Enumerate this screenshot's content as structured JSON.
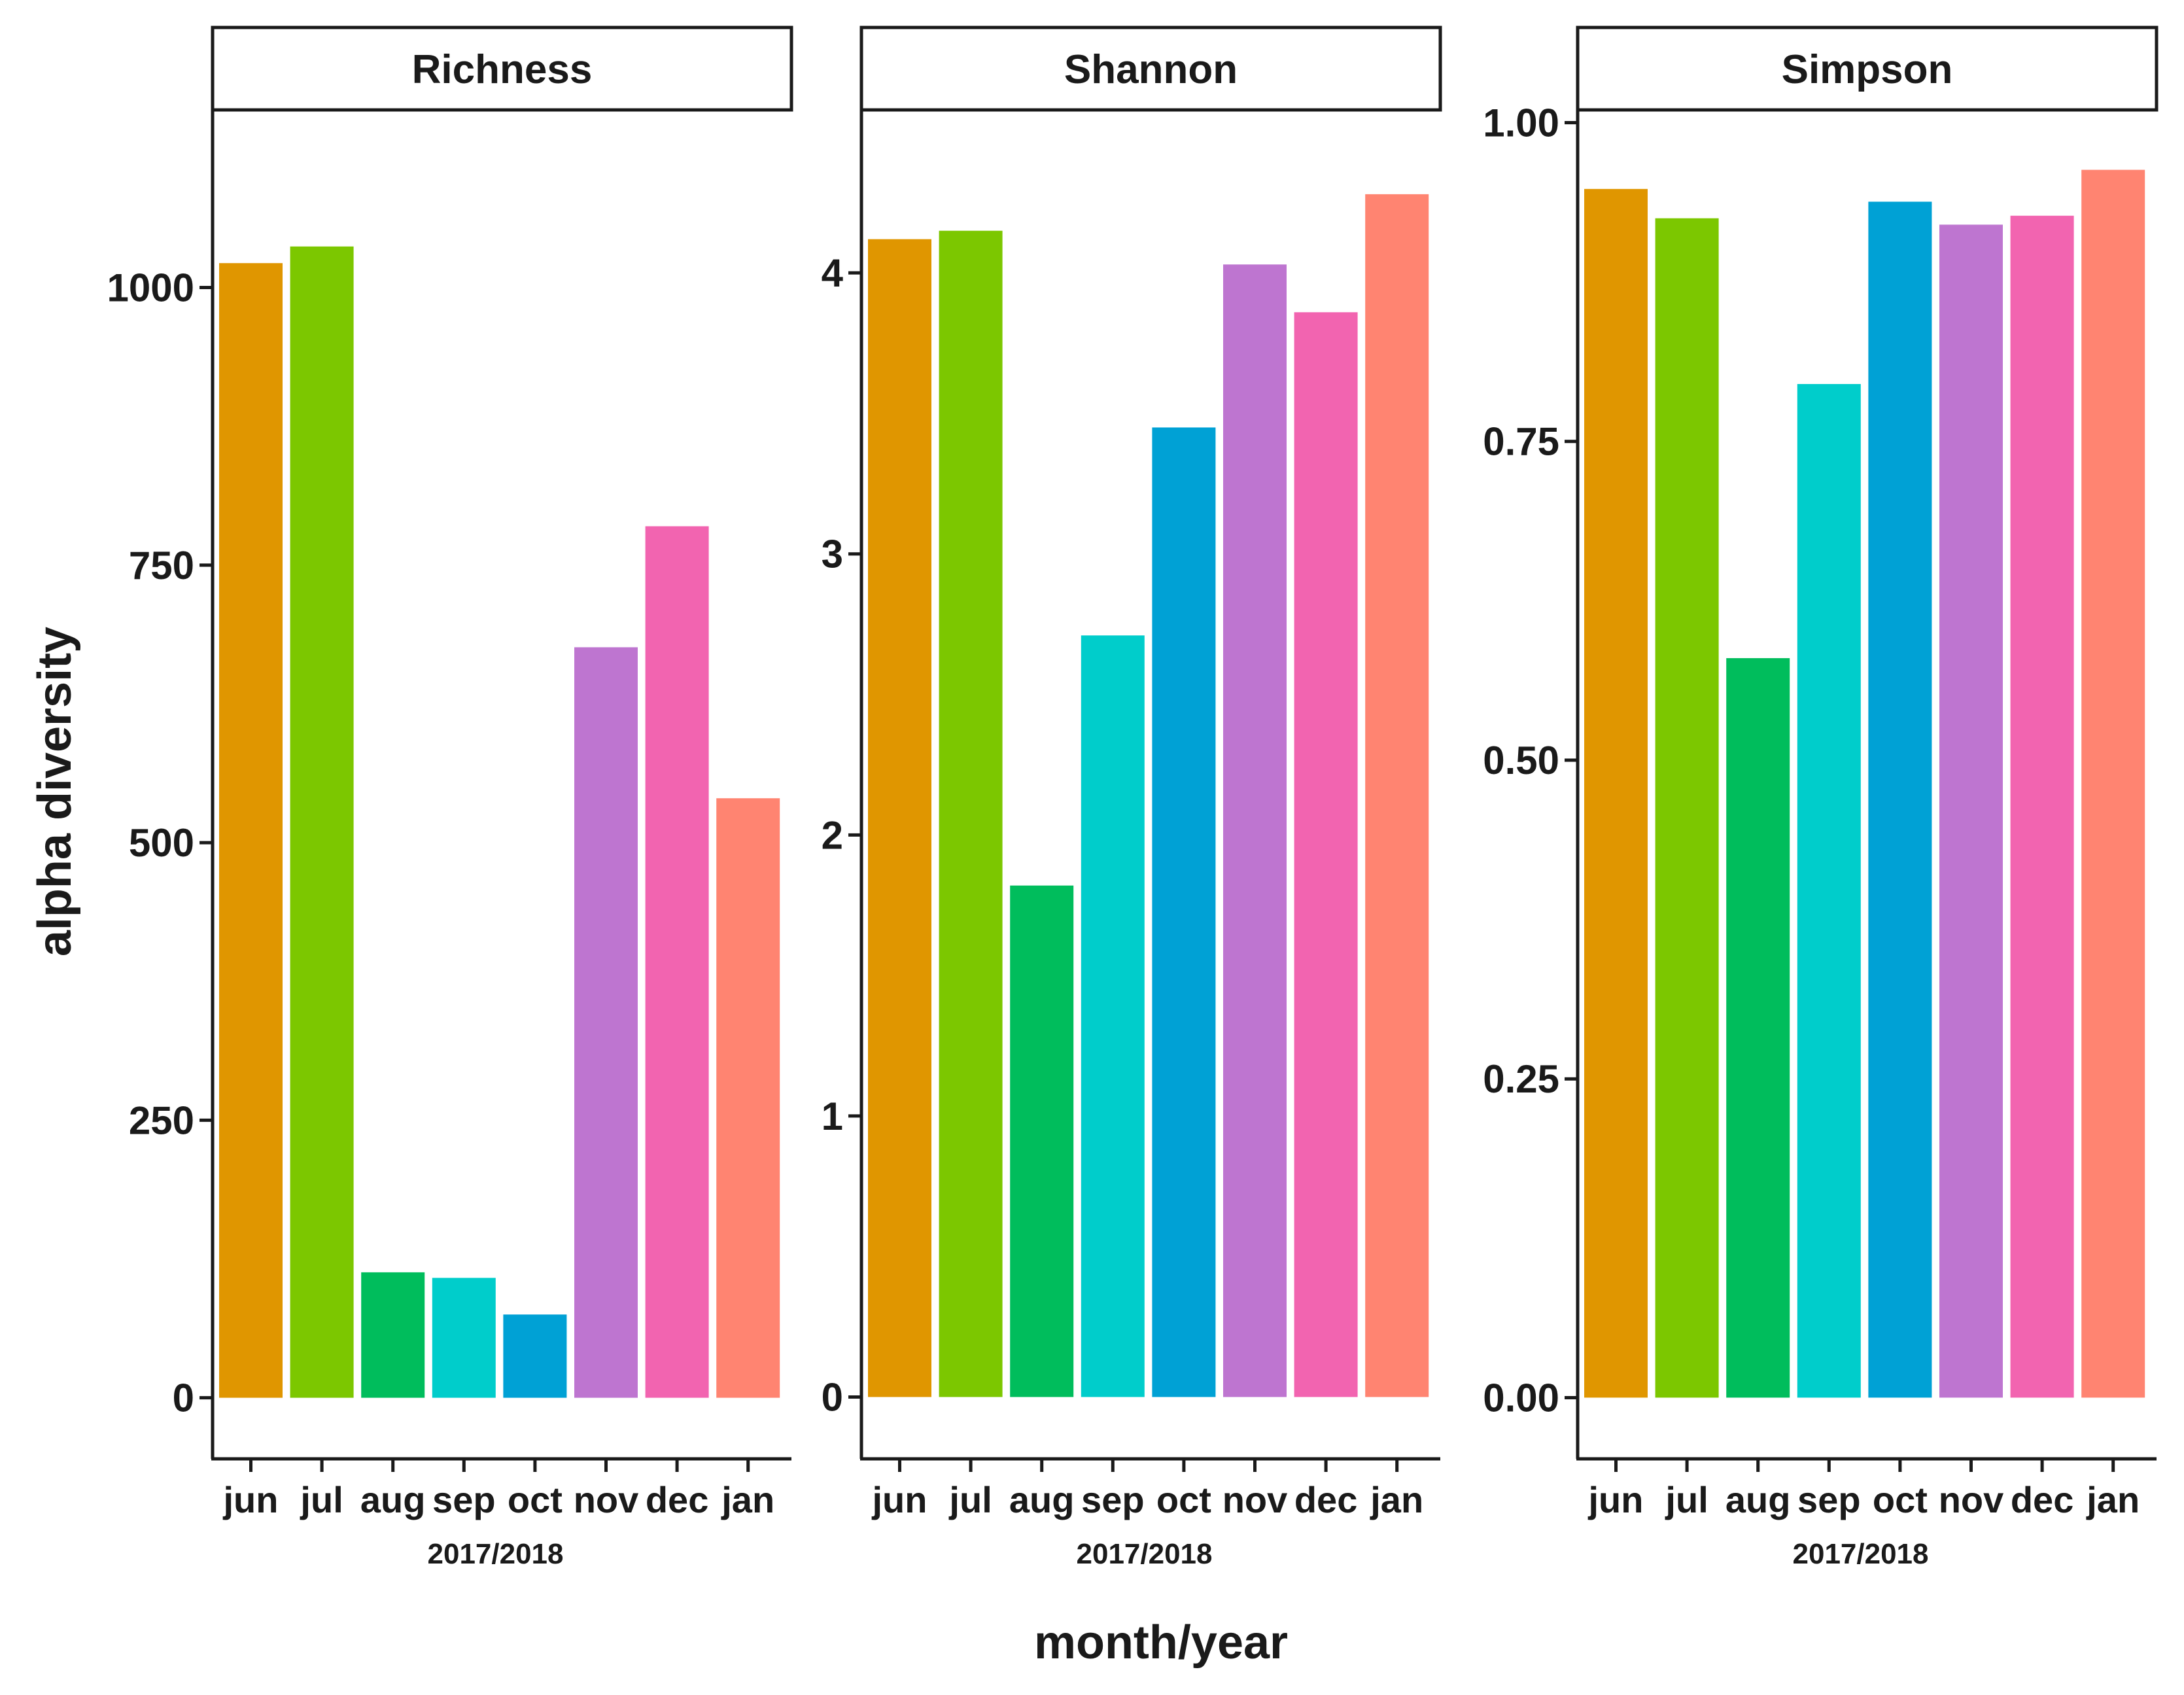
{
  "chart_data": {
    "type": "bar",
    "title": "",
    "xlabel": "month/year",
    "ylabel": "alpha diversity",
    "x_sublabel": "2017/2018",
    "categories": [
      "jun",
      "jul",
      "aug",
      "sep",
      "oct",
      "nov",
      "dec",
      "jan"
    ],
    "colors": [
      "#E09600",
      "#7CC700",
      "#00BD5C",
      "#00CDCB",
      "#00A1D5",
      "#BE75D0",
      "#F264B0",
      "#FF8471"
    ],
    "panels": [
      {
        "name": "Richness",
        "values": [
          1022,
          1037,
          113,
          108,
          75,
          676,
          785,
          540
        ],
        "ylim": [
          -55,
          1160
        ],
        "ticks": [
          0,
          250,
          500,
          750,
          1000
        ],
        "tick_labels": [
          "0",
          "250",
          "500",
          "750",
          "1000"
        ]
      },
      {
        "name": "Shannon",
        "values": [
          4.12,
          4.15,
          1.82,
          2.71,
          3.45,
          4.03,
          3.86,
          4.28
        ],
        "ylim": [
          -0.22,
          4.58
        ],
        "ticks": [
          0,
          1,
          2,
          3,
          4
        ],
        "tick_labels": [
          "0",
          "1",
          "2",
          "3",
          "4"
        ]
      },
      {
        "name": "Simpson",
        "values": [
          0.948,
          0.925,
          0.58,
          0.795,
          0.938,
          0.92,
          0.927,
          0.963
        ],
        "ylim": [
          -0.048,
          1.01
        ],
        "ticks": [
          0,
          0.25,
          0.5,
          0.75,
          1.0
        ],
        "tick_labels": [
          "0.00",
          "0.25",
          "0.50",
          "0.75",
          "1.00"
        ]
      }
    ]
  }
}
